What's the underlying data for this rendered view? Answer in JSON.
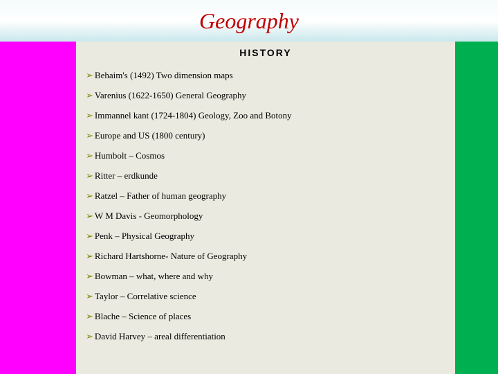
{
  "header": {
    "title": "Geography",
    "title_color": "#c00000",
    "title_fontsize": 32,
    "gradient_top": "#f5fbfc",
    "gradient_mid": "#ffffff",
    "gradient_bottom": "#c9e8ed"
  },
  "section": {
    "heading": "HISTORY",
    "heading_fontsize": 14,
    "heading_letterspacing": 2
  },
  "sidebars": {
    "left_color": "#ff00ff",
    "right_color": "#00b050",
    "left_width": 110,
    "right_width": 62
  },
  "content": {
    "background_color": "#eaeae0",
    "bullet_char": "➢",
    "bullet_color": "#808000",
    "item_fontsize": 13,
    "items": [
      "Behaim's (1492) Two dimension maps",
      "Varenius (1622-1650) General Geography",
      "Immannel kant (1724-1804) Geology, Zoo and Botony",
      "Europe and US (1800 century)",
      "Humbolt – Cosmos",
      "Ritter – erdkunde",
      "Ratzel – Father of human geography",
      "W M Davis - Geomorphology",
      "Penk – Physical Geography",
      "Richard Hartshorne- Nature of Geography",
      "Bowman – what, where and why",
      "Taylor – Correlative science",
      "Blache – Science of places",
      "David Harvey – areal differentiation"
    ]
  }
}
